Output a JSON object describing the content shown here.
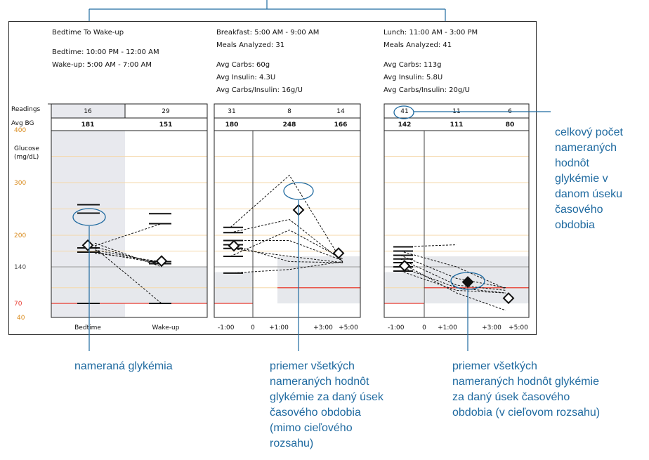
{
  "headers": {
    "bedtime": {
      "title": "Bedtime To Wake-up",
      "line1": "Bedtime: 10:00 PM - 12:00 AM",
      "line2": "Wake-up: 5:00 AM - 7:00 AM"
    },
    "breakfast": {
      "title": "Breakfast: 5:00 AM - 9:00 AM",
      "meals": "Meals Analyzed: 31",
      "carbs": "Avg Carbs: 60g",
      "insulin": "Avg Insulin: 4.3U",
      "ratio": "Avg Carbs/Insulin: 16g/U"
    },
    "lunch": {
      "title": "Lunch: 11:00 AM - 3:00 PM",
      "meals": "Meals Analyzed: 41",
      "carbs": "Avg Carbs: 113g",
      "insulin": "Avg Insulin: 5.8U",
      "ratio": "Avg Carbs/Insulin: 20g/U"
    }
  },
  "row_labels": {
    "readings": "Readings",
    "avg_bg": "Avg BG"
  },
  "y_axis": {
    "label_line1": "Glucose",
    "label_line2": "(mg/dL)"
  },
  "colors": {
    "target_band": "#e6e8ec",
    "low_line": "#e8392e",
    "grid": "#f5d7a8",
    "label_orange": "#d98a1b",
    "callout": "#1f6aa0"
  },
  "callouts": {
    "total": [
      "celkový počet",
      "nameraných",
      "hodnôt",
      "glykémie v",
      "danom úseku",
      "časového",
      "obdobia"
    ],
    "measured": [
      "nameraná glykémia"
    ],
    "avg_outside": [
      "priemer všetkých",
      "nameraných hodnôt",
      "glykémie za daný úsek",
      "časového obdobia",
      "(mimo cieľového",
      "rozsahu)"
    ],
    "avg_inside": [
      "priemer všetkých",
      "nameraných hodnôt glykémie",
      "za daný úsek časového",
      "obdobia (v cieľovom rozsahu)"
    ]
  },
  "chart_data": {
    "type": "line",
    "y_ticks": [
      40,
      70,
      140,
      200,
      300,
      400
    ],
    "ylim": [
      40,
      400
    ],
    "target_range": [
      70,
      140
    ],
    "panels": [
      {
        "name": "Bedtime To Wake-up",
        "x_ticks": [
          "Bedtime",
          "Wake-up"
        ],
        "readings": [
          "16",
          "29"
        ],
        "avg_bg": [
          "181",
          "151"
        ],
        "averages": [
          181,
          151
        ],
        "readings_low": [
          70
        ],
        "lines": [
          [
            185,
            140
          ],
          [
            180,
            222
          ],
          [
            176,
            70
          ],
          [
            172,
            148
          ],
          [
            168,
            146
          ],
          [
            166,
            150
          ],
          [
            178,
            144
          ]
        ],
        "marks_bedtime": [
          258,
          242,
          168
        ],
        "marks_wakeup": [
          241,
          222,
          151,
          148,
          145,
          70
        ]
      },
      {
        "name": "Breakfast",
        "x_ticks": [
          "-1:00",
          "0",
          "+1:00",
          "+3:00",
          "+5:00"
        ],
        "readings": [
          "31",
          "8",
          "14"
        ],
        "avg_bg": [
          "180",
          "248",
          "166"
        ],
        "averages": [
          180,
          248,
          166
        ],
        "lines": [
          [
            215,
            314,
            148
          ],
          [
            205,
            230,
            150
          ],
          [
            190,
            190,
            152
          ],
          [
            182,
            150,
            148
          ],
          [
            175,
            160,
            148
          ],
          [
            160,
            210,
            155
          ],
          [
            128,
            135,
            150
          ]
        ]
      },
      {
        "name": "Lunch",
        "x_ticks": [
          "-1:00",
          "0",
          "+1:00",
          "+3:00",
          "+5:00"
        ],
        "readings": [
          "41",
          "11",
          "6"
        ],
        "avg_bg": [
          "142",
          "111",
          "80"
        ],
        "averages": [
          142,
          111,
          80
        ],
        "lines": [
          [
            178,
            182
          ],
          [
            170,
            140,
            98
          ],
          [
            162,
            118,
            100
          ],
          [
            155,
            105,
            95
          ],
          [
            148,
            90,
            55
          ],
          [
            140,
            100,
            90
          ],
          [
            132,
            95,
            90
          ]
        ]
      }
    ]
  }
}
